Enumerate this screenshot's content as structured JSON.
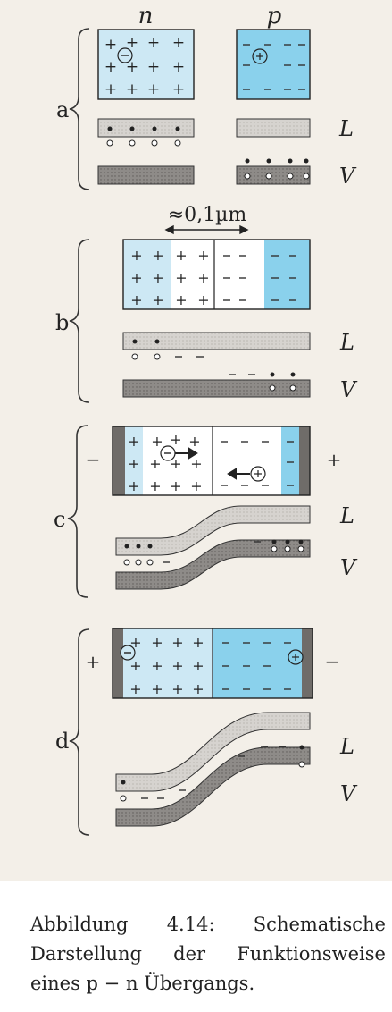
{
  "labels": {
    "n": "n",
    "p": "p",
    "L": "L",
    "V": "V",
    "width_marker": "≈0,1µm",
    "panels": [
      "a",
      "b",
      "c",
      "d"
    ],
    "plus": "+",
    "minus": "−",
    "hole_symbol": "⊕",
    "electron_symbol": "⊖"
  },
  "colors": {
    "region_blue": "#cde8f4",
    "region_deep_blue": "#8ad1ec",
    "band_light": "#d3d0cc",
    "band_dark": "#8a8784",
    "ink": "#222222"
  },
  "caption": {
    "line1": [
      "Abbildung",
      "4.14:",
      "Schematische"
    ],
    "line2": [
      "Darstellung",
      "der",
      "Funktionsweise"
    ],
    "line3": "eines p − n Übergangs."
  }
}
